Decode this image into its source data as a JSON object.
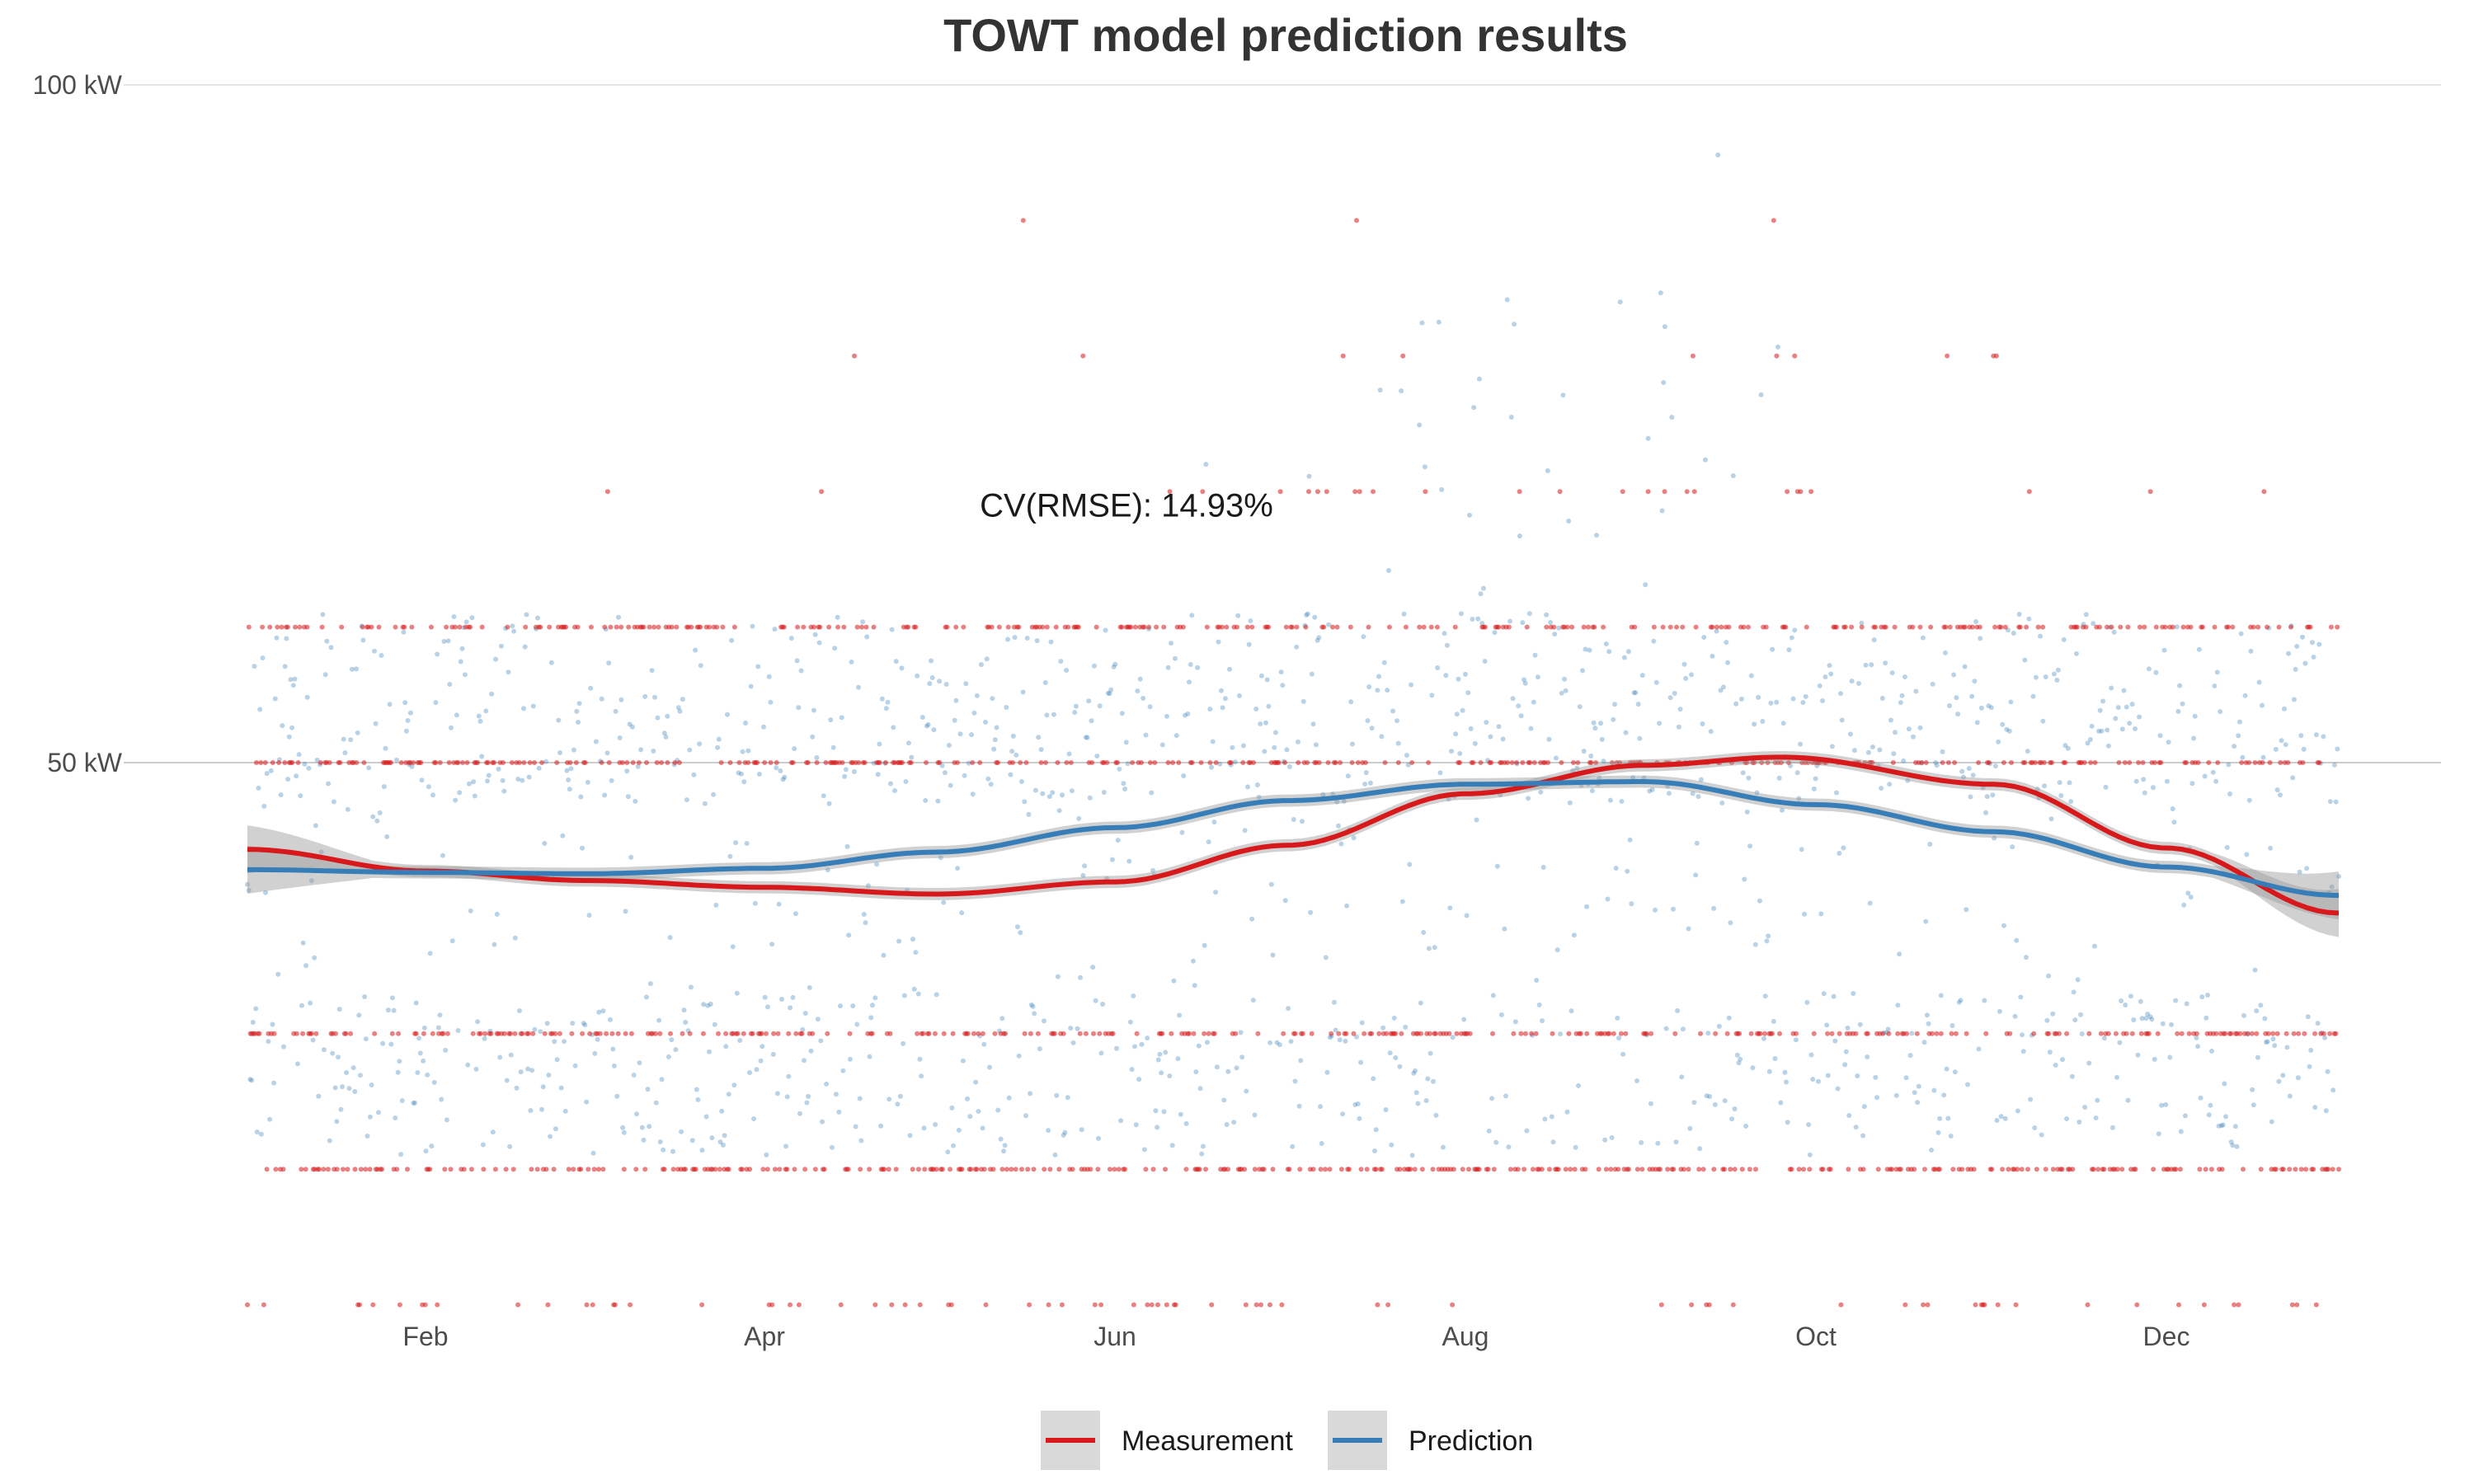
{
  "chart_data": {
    "type": "scatter",
    "title": "TOWT model prediction results",
    "xlabel": "",
    "ylabel": "",
    "x_range": [
      "2019-01-01",
      "2019-12-31"
    ],
    "ylim": [
      0,
      100
    ],
    "x_ticks": [
      {
        "date": "2019-02-01",
        "label": "Feb"
      },
      {
        "date": "2019-04-01",
        "label": "Apr"
      },
      {
        "date": "2019-06-01",
        "label": "Jun"
      },
      {
        "date": "2019-08-01",
        "label": "Aug"
      },
      {
        "date": "2019-10-01",
        "label": "Oct"
      },
      {
        "date": "2019-12-01",
        "label": "Dec"
      }
    ],
    "y_ticks": [
      {
        "value": 50,
        "label": "50 kW"
      },
      {
        "value": 100,
        "label": "100 kW"
      }
    ],
    "annotation": {
      "text": "CV(RMSE): 14.93%",
      "date": "2019-06-03",
      "y": 69
    },
    "legend_position": "bottom",
    "grid": true,
    "series": [
      {
        "name": "Measurement",
        "color": "#d7191c",
        "measurement_levels": [
          10,
          20,
          30,
          40,
          50,
          60,
          70,
          80,
          90,
          100
        ],
        "smooth_trend": [
          {
            "date": "2019-01-01",
            "y": 43.6
          },
          {
            "date": "2019-02-01",
            "y": 42.0
          },
          {
            "date": "2019-03-01",
            "y": 41.3
          },
          {
            "date": "2019-04-01",
            "y": 40.8
          },
          {
            "date": "2019-05-01",
            "y": 40.3
          },
          {
            "date": "2019-06-01",
            "y": 41.2
          },
          {
            "date": "2019-07-01",
            "y": 43.9
          },
          {
            "date": "2019-08-01",
            "y": 47.7
          },
          {
            "date": "2019-09-01",
            "y": 49.8
          },
          {
            "date": "2019-09-25",
            "y": 50.4
          },
          {
            "date": "2019-11-01",
            "y": 48.4
          },
          {
            "date": "2019-12-01",
            "y": 43.7
          },
          {
            "date": "2019-12-31",
            "y": 38.9
          }
        ]
      },
      {
        "name": "Prediction",
        "color": "#377eb8",
        "smooth_trend": [
          {
            "date": "2019-01-01",
            "y": 42.1
          },
          {
            "date": "2019-02-01",
            "y": 41.9
          },
          {
            "date": "2019-03-01",
            "y": 41.8
          },
          {
            "date": "2019-04-01",
            "y": 42.2
          },
          {
            "date": "2019-05-01",
            "y": 43.4
          },
          {
            "date": "2019-06-01",
            "y": 45.2
          },
          {
            "date": "2019-07-01",
            "y": 47.2
          },
          {
            "date": "2019-08-01",
            "y": 48.4
          },
          {
            "date": "2019-09-01",
            "y": 48.6
          },
          {
            "date": "2019-10-01",
            "y": 46.9
          },
          {
            "date": "2019-11-01",
            "y": 44.9
          },
          {
            "date": "2019-12-01",
            "y": 42.3
          },
          {
            "date": "2019-12-31",
            "y": 40.2
          }
        ]
      }
    ]
  }
}
